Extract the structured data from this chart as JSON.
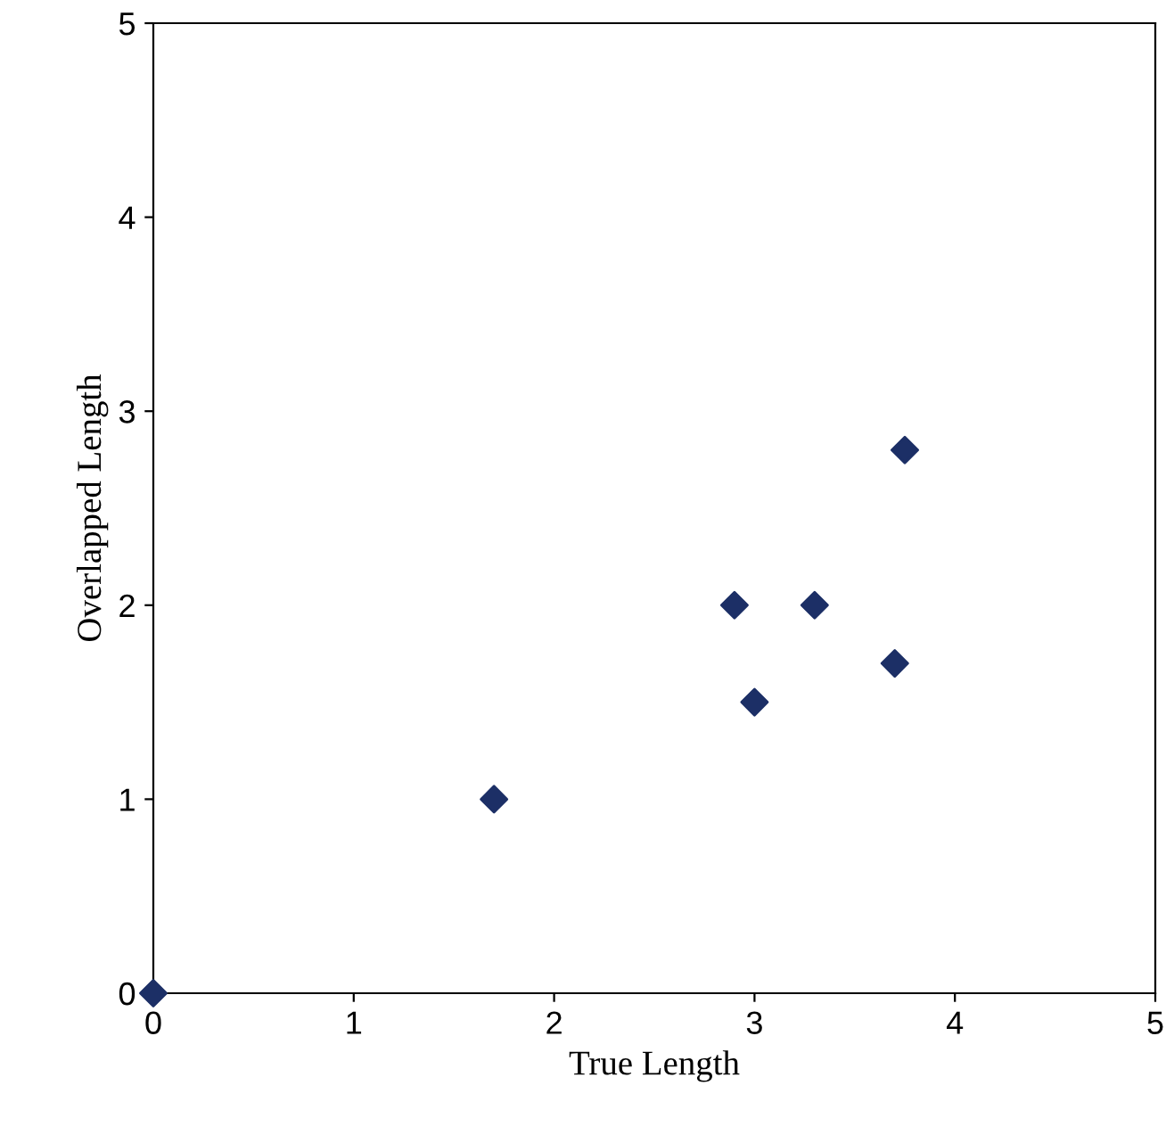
{
  "chart_data": {
    "type": "scatter",
    "xlabel": "True Length",
    "ylabel": "Overlapped Length",
    "x": [
      0,
      1.7,
      2.9,
      3.0,
      3.3,
      3.75,
      3.7
    ],
    "series": [
      {
        "color": "#1c2f66",
        "values": [
          0,
          1.0,
          2.0,
          1.5,
          2.0,
          2.8,
          1.7
        ]
      }
    ],
    "xlim": [
      0,
      5
    ],
    "ylim": [
      0,
      5
    ],
    "xticks": [
      0,
      1,
      2,
      3,
      4,
      5
    ],
    "yticks": [
      0,
      1,
      2,
      3,
      4,
      5
    ],
    "marker": "diamond",
    "grid": false,
    "legend": false
  }
}
